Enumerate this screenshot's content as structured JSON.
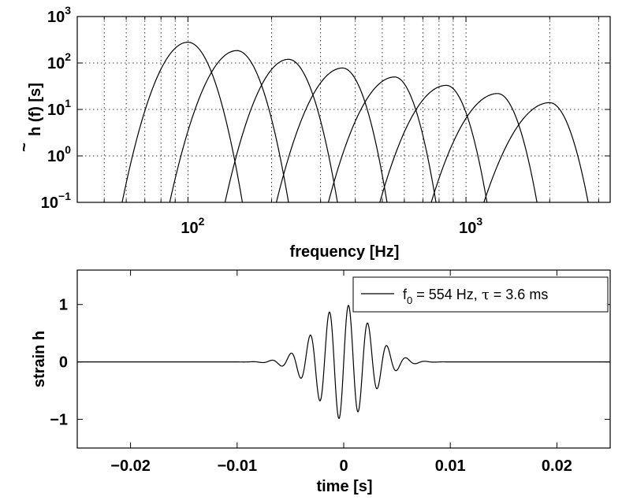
{
  "chart_data": [
    {
      "type": "line",
      "xscale": "log",
      "yscale": "log",
      "xlabel": "frequency [Hz]",
      "ylabel": "h (f) [s]",
      "ylabel_parts": {
        "base": "h",
        "accent": "~",
        "rest": " (f) [s]"
      },
      "xlim": [
        40,
        3300
      ],
      "ylim": [
        0.1,
        1000
      ],
      "xticks": [
        {
          "value": 100,
          "base": "10",
          "exp": "2"
        },
        {
          "value": 1000,
          "base": "10",
          "exp": "3"
        }
      ],
      "yticks": [
        {
          "value": 0.1,
          "base": "10",
          "exp": "−1"
        },
        {
          "value": 1,
          "base": "10",
          "exp": "0"
        },
        {
          "value": 10,
          "base": "10",
          "exp": "1"
        },
        {
          "value": 100,
          "base": "10",
          "exp": "2"
        },
        {
          "value": 1000,
          "base": "10",
          "exp": "3"
        }
      ],
      "grid": true,
      "series": [
        {
          "peak_frequency": 100,
          "peak_value": 280,
          "left_edge": 58,
          "right_edge": 157
        },
        {
          "peak_frequency": 150,
          "peak_value": 185,
          "left_edge": 86,
          "right_edge": 230
        },
        {
          "peak_frequency": 230,
          "peak_value": 120,
          "left_edge": 136,
          "right_edge": 345
        },
        {
          "peak_frequency": 360,
          "peak_value": 78,
          "left_edge": 208,
          "right_edge": 520
        },
        {
          "peak_frequency": 554,
          "peak_value": 50,
          "left_edge": 320,
          "right_edge": 780
        },
        {
          "peak_frequency": 850,
          "peak_value": 33,
          "left_edge": 490,
          "right_edge": 1190
        },
        {
          "peak_frequency": 1300,
          "peak_value": 22,
          "left_edge": 750,
          "right_edge": 1800
        },
        {
          "peak_frequency": 2000,
          "peak_value": 14,
          "left_edge": 1160,
          "right_edge": 2750
        }
      ]
    },
    {
      "type": "line",
      "xlabel": "time [s]",
      "ylabel": "strain h",
      "xlim": [
        -0.025,
        0.025
      ],
      "ylim": [
        -1.5,
        1.6
      ],
      "xticks": [
        {
          "value": -0.02,
          "label": "−0.02"
        },
        {
          "value": -0.01,
          "label": "−0.01"
        },
        {
          "value": 0,
          "label": "0"
        },
        {
          "value": 0.01,
          "label": "0.01"
        },
        {
          "value": 0.02,
          "label": "0.02"
        }
      ],
      "yticks": [
        {
          "value": -1,
          "label": "−1"
        },
        {
          "value": 0,
          "label": "0"
        },
        {
          "value": 1,
          "label": "1"
        }
      ],
      "grid": false,
      "legend": {
        "placement": "top-right",
        "f_symbol": "f",
        "f_subscript": "0",
        "f_text": " = 554 Hz, ",
        "tau_symbol": "τ",
        "tau_text": " = 3.6 ms"
      },
      "series": [
        {
          "frequency_hz": 554,
          "tau_ms": 3.6,
          "amplitude": 1.0,
          "t_start": -0.025,
          "t_end": 0.025
        }
      ]
    }
  ]
}
